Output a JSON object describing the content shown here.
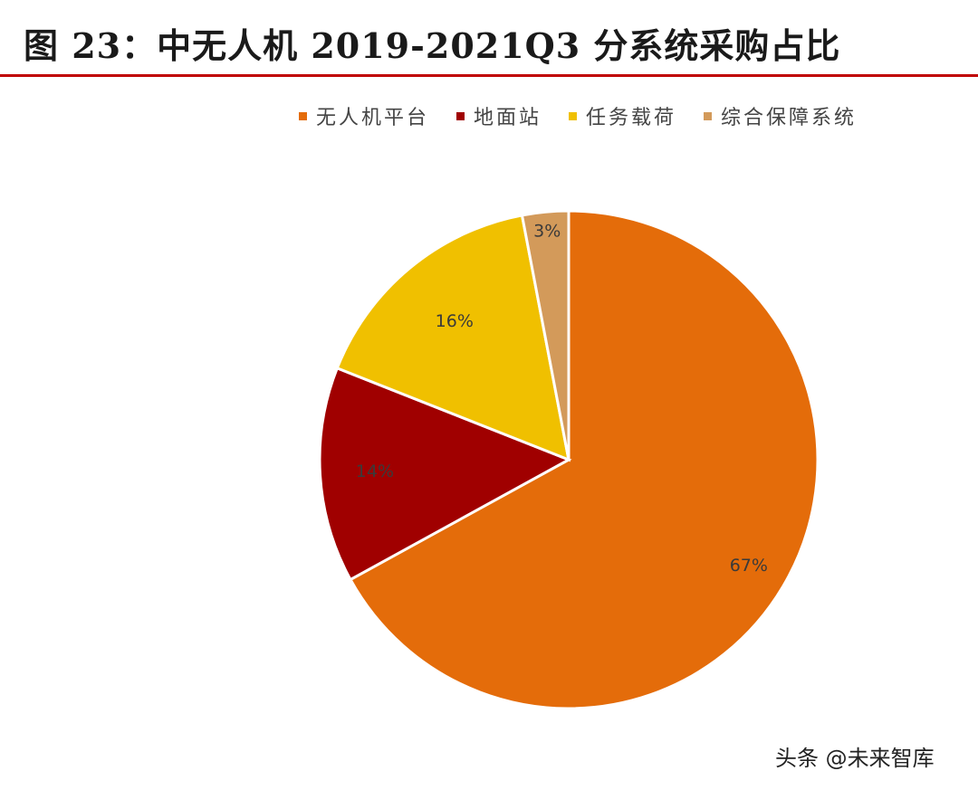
{
  "page": {
    "title": "图 23：中无人机 2019-2021Q3 分系统采购占比",
    "watermark": "头条 @未来智库"
  },
  "chart_data": {
    "type": "pie",
    "title": "图 23：中无人机 2019-2021Q3 分系统采购占比",
    "legend_position": "top",
    "series": [
      {
        "name": "无人机平台",
        "value": 67,
        "label": "67%",
        "color": "#e46c0a"
      },
      {
        "name": "地面站",
        "value": 14,
        "label": "14%",
        "color": "#a00000"
      },
      {
        "name": "任务载荷",
        "value": 16,
        "label": "16%",
        "color": "#f0c000"
      },
      {
        "name": "综合保障系统",
        "value": 3,
        "label": "3%",
        "color": "#d39a5a"
      }
    ]
  }
}
